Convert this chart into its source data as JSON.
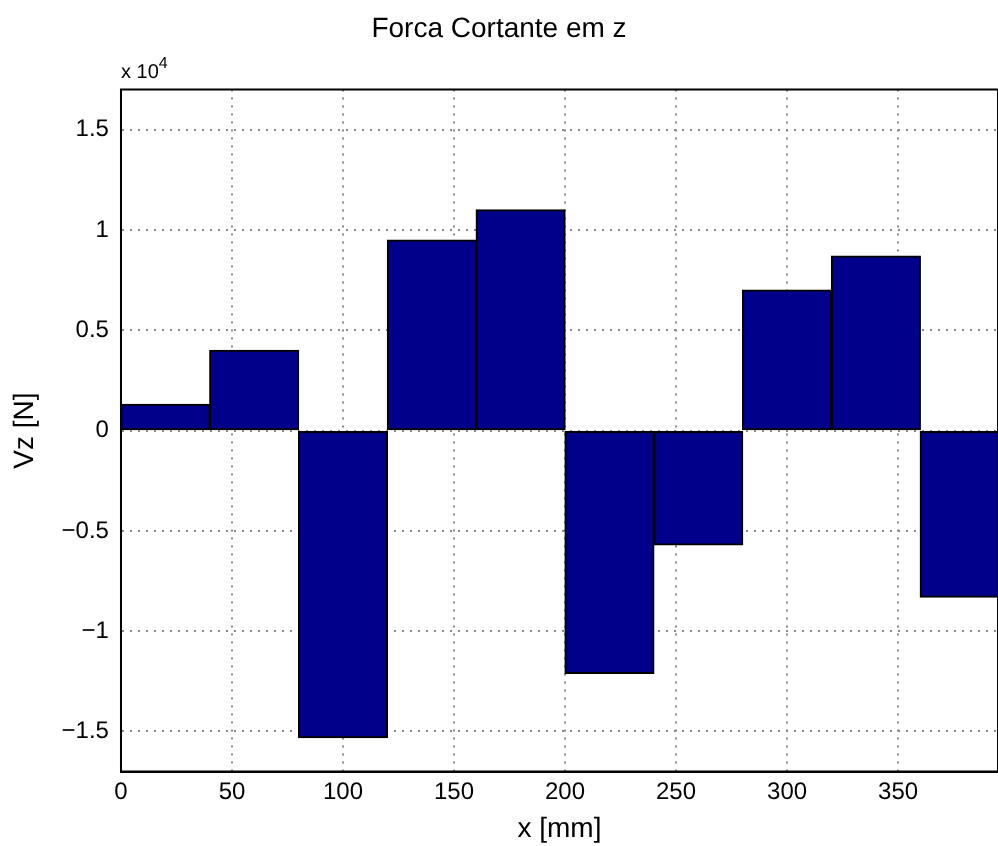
{
  "chart_data": {
    "type": "bar",
    "title": "Forca Cortante em z",
    "xlabel": "x [mm]",
    "ylabel": "Vz [N]",
    "annotations": [
      "x 10$^{4}$"
    ],
    "x": [
      20,
      60,
      100,
      140,
      180,
      220,
      260,
      300,
      340,
      380
    ],
    "values": [
      0.13,
      0.4,
      -1.53,
      0.95,
      1.1,
      -1.21,
      -0.57,
      0.7,
      0.87,
      -0.83
    ],
    "color": "#00008b",
    "xlim": [
      0,
      395
    ],
    "xticks": [
      0,
      50,
      100,
      150,
      200,
      250,
      300,
      350
    ],
    "ylim": [
      -1.7,
      1.7
    ],
    "yticks": [
      -1.5,
      -1,
      -0.5,
      0,
      0.5,
      1,
      1.5
    ],
    "grid": true,
    "legend": false
  }
}
